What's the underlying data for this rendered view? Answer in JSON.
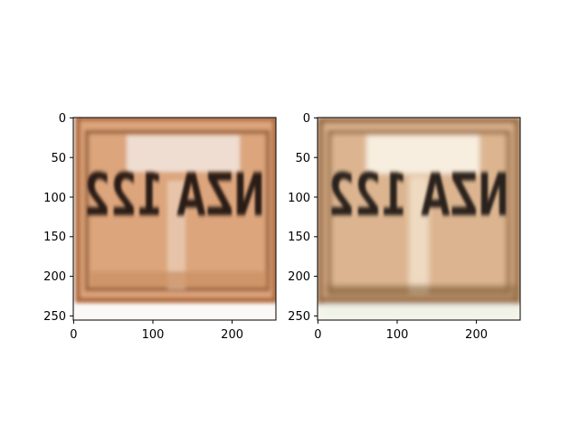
{
  "figure": {
    "panels": [
      {
        "name": "left-image",
        "x_ticks": [
          "0",
          "100",
          "200"
        ],
        "y_ticks": [
          "0",
          "50",
          "100",
          "150",
          "200",
          "250"
        ],
        "plate_text": "NZA 122",
        "colors": {
          "plate_base": "#dca57b",
          "frame": "#b06a3c",
          "text": "#2a1c18",
          "glare": "#f4ece6"
        }
      },
      {
        "name": "right-image",
        "x_ticks": [
          "0",
          "100",
          "200"
        ],
        "y_ticks": [
          "0",
          "50",
          "100",
          "150",
          "200",
          "250"
        ],
        "plate_text": "NZA 122",
        "colors": {
          "plate_base": "#dcb590",
          "frame": "#9a6a40",
          "text": "#2c231c",
          "glare": "#fbf4e8"
        }
      }
    ]
  }
}
